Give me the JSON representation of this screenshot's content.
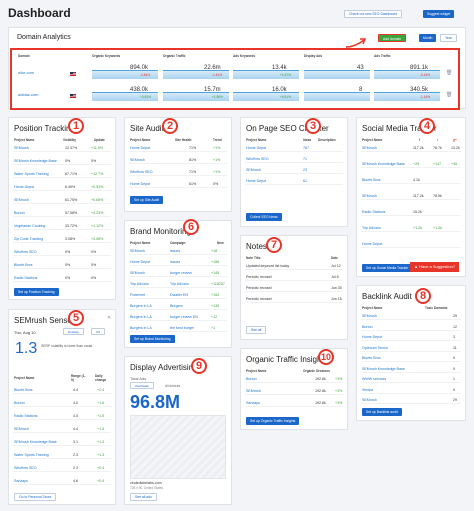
{
  "header": {
    "title": "Dashboard",
    "check_link": "Check out new SEO Dashboard",
    "suggest_btn": "Suggest widget"
  },
  "domain_analytics": {
    "title": "Domain Analytics",
    "add_btn": "Add domain",
    "month": "Month",
    "year": "Year",
    "columns": [
      "Domain",
      "Organic Keywords",
      "Organic Traffic",
      "Ads Keywords",
      "Display Ads",
      "Ads Traffic"
    ],
    "rows": [
      {
        "domain": "nike.com",
        "ok": "894.0k",
        "ok_d": "-3.84%",
        "ot": "22.6m",
        "ot_d": "-1.61%",
        "ak": "13.4k",
        "ak_d": "+1.57%",
        "da": "43",
        "at": "891.1k",
        "at_d": "-5.16%"
      },
      {
        "domain": "adidas.com",
        "ok": "438.0k",
        "ok_d": "+3.93%",
        "ot": "15.7m",
        "ot_d": "+1.56%",
        "ak": "16.0k",
        "ak_d": "+6.91%",
        "da": "8",
        "at": "340.5k",
        "at_d": "-1.16%"
      }
    ]
  },
  "position_tracking": {
    "title": "Position Tracking",
    "cols": [
      "Project Name",
      "Visibility",
      "Update"
    ],
    "rows": [
      {
        "n": "SEMrush",
        "v": "12.37%",
        "d": "+11.5%"
      },
      {
        "n": "SEMrush Knowledge Base",
        "v": "0%",
        "d": "0%"
      },
      {
        "n": "Water Sports Training",
        "v": "67.71%",
        "d": "+12.7%"
      },
      {
        "n": "Home Depot",
        "v": "6.49%",
        "d": "+0.53%"
      },
      {
        "n": "SEMrush",
        "v": "61.75%",
        "d": "+0.65%"
      },
      {
        "n": "Burton",
        "v": "57.58%",
        "d": "+4.23%"
      },
      {
        "n": "Vegetarian Cooking",
        "v": "33.72%",
        "d": "+1.12%"
      },
      {
        "n": "Zip Code Tracking",
        "v": "3.08%",
        "d": "+3.08%"
      },
      {
        "n": "WikiHow SEO",
        "v": "0%",
        "d": "0%"
      },
      {
        "n": "Bluebt Bros",
        "v": "0%",
        "d": "0%"
      },
      {
        "n": "Radio Stations",
        "v": "0%",
        "d": "0%"
      }
    ],
    "btn": "Set up Position Tracking"
  },
  "site_audit": {
    "title": "Site Audit",
    "cols": [
      "Project Name",
      "Site Health",
      "Trend"
    ],
    "rows": [
      {
        "n": "Home Depot",
        "v": "71%",
        "d": "+1%"
      },
      {
        "n": "SEMrush",
        "v": "81%",
        "d": "+1%"
      },
      {
        "n": "WikiHow SEO",
        "v": "71%",
        "d": "+1%"
      },
      {
        "n": "Home Depot",
        "v": "61%",
        "d": "0%"
      }
    ],
    "btn": "Set up Site Audit"
  },
  "onpage": {
    "title": "On Page SEO Checker",
    "cols": [
      "Project Name",
      "Ideas",
      "Description"
    ],
    "rows": [
      {
        "n": "Home Depot",
        "v": "767"
      },
      {
        "n": "WikiHow SEO",
        "v": "71"
      },
      {
        "n": "SEMrush",
        "v": "23"
      },
      {
        "n": "Home Depot",
        "v": "61"
      }
    ],
    "btn": "Collect SEO Ideas"
  },
  "social": {
    "title": "Social Media Tracker",
    "cols": [
      "Project Name",
      "f",
      "t",
      "g+"
    ],
    "rows": [
      {
        "n": "SEMrush",
        "a": "117.2k",
        "b": "78.7k",
        "c": "13.2k"
      },
      {
        "n": "SEMrush Knowledge Base",
        "a": "+29",
        "b": "+147",
        "c": "+45"
      },
      {
        "n": "Bluebt Bros",
        "a": "4.1k",
        "b": "",
        "c": ""
      },
      {
        "n": "SEMrush",
        "a": "117.2k",
        "b": "78.5k",
        "c": ""
      },
      {
        "n": "Radio Stations",
        "a": "15.2k",
        "b": "",
        "c": ""
      },
      {
        "n": "Trip Advisor",
        "a": "+1.2k",
        "b": "+1.2k",
        "c": ""
      },
      {
        "n": "Home Depot",
        "a": "",
        "b": "",
        "c": ""
      }
    ],
    "btn": "Set up Social Media Tracker"
  },
  "brand": {
    "title": "Brand Monitoring",
    "cols": [
      "Project Name",
      "Campaign",
      "New"
    ],
    "rows": [
      {
        "n": "SEMrush",
        "c": "issues",
        "v": "+18"
      },
      {
        "n": "Home Depot",
        "c": "issues",
        "v": "+156"
      },
      {
        "n": "SEMrush",
        "c": "burger review",
        "v": "+145"
      },
      {
        "n": "Trip Advisor",
        "c": "Trip Advisor",
        "v": "+118257"
      },
      {
        "n": "Powernet",
        "c": "Dwaller EN",
        "v": "+152"
      },
      {
        "n": "Burgers in LA",
        "c": "Burgers",
        "v": "+135"
      },
      {
        "n": "Burgers in LA",
        "c": "burger review EN",
        "v": "+12"
      },
      {
        "n": "Burgers in LA",
        "c": "the best burger",
        "v": "+1"
      }
    ],
    "btn": "Set up Brand Monitoring"
  },
  "notes": {
    "title": "Notes",
    "cols": [
      "Note Title",
      "Date"
    ],
    "rows": [
      {
        "n": "Updated keyword list today",
        "d": "Jul 12"
      },
      {
        "n": "Periodic recrawl",
        "d": "Jul 8"
      },
      {
        "n": "Periodic recrawl",
        "d": "Jun 30"
      },
      {
        "n": "Periodic recrawl",
        "d": "Jun 15"
      }
    ],
    "btn": "See all"
  },
  "backlink": {
    "title": "Backlink Audit",
    "cols": [
      "Project Name",
      "Toxic Domains"
    ],
    "rows": [
      {
        "n": "SEMrush",
        "v": "29"
      },
      {
        "n": "Burton",
        "v": "12"
      },
      {
        "n": "Home Depot",
        "v": "3"
      },
      {
        "n": "Optimum Tennis",
        "v": "11"
      },
      {
        "n": "Bluebt Bros",
        "v": "0"
      },
      {
        "n": "SEMrush Knowledge Base",
        "v": "0"
      },
      {
        "n": "WWW services",
        "v": "1"
      },
      {
        "n": "Sensia",
        "v": "0"
      },
      {
        "n": "SEMrush",
        "v": "29"
      }
    ],
    "btn": "Set up Backlink audit",
    "suggestion": "Have a Suggestion?"
  },
  "sensor": {
    "title": "SEMrush Sensor",
    "date": "Thu, Aug 10",
    "device": "Desktop",
    "country": "US",
    "score": "1.3",
    "desc": "SERP volatility is lower than usual",
    "cols": [
      "Project Name",
      "Range (1-5)",
      "Daily change"
    ],
    "rows": [
      {
        "n": "Bluebt Bros",
        "v": "4.4",
        "d": "+2.4"
      },
      {
        "n": "Burton",
        "v": "4.0",
        "d": "+1.6"
      },
      {
        "n": "Radio Stations",
        "v": "4.0",
        "d": "+1.5"
      },
      {
        "n": "SEMrush",
        "v": "4.4",
        "d": "+1.5"
      },
      {
        "n": "SEMrush Knowledge Base",
        "v": "3.1",
        "d": "+1.3"
      },
      {
        "n": "Water Sports Training",
        "v": "2.3",
        "d": "+1.3"
      },
      {
        "n": "WikiHow SEO",
        "v": "2.3",
        "d": "+0.4"
      },
      {
        "n": "Sarizays",
        "v": "4.6",
        "d": "+0.4"
      }
    ],
    "btn": "Go to Personal Score"
  },
  "display_ads": {
    "title": "Display Advertising",
    "total_label": "Total Ads",
    "filter": "Worldwide",
    "devices": "All devices",
    "value": "96.8M",
    "ad_domain": "cludedwirelabs.com",
    "ad_size": "728 x 90, United States",
    "btn": "See all ads"
  },
  "organic": {
    "title": "Organic Traffic Insights",
    "cols": [
      "Project Name",
      "Organic Sessions"
    ],
    "rows": [
      {
        "n": "Burton",
        "v": "192.8k",
        "d": "+3%"
      },
      {
        "n": "SEMrush",
        "v": "192.8k",
        "d": "+3%"
      },
      {
        "n": "Sarizays",
        "v": "192.8k",
        "d": "+3%"
      }
    ],
    "btn": "Set up Organic Traffic Insights"
  },
  "markers": [
    "1",
    "2",
    "3",
    "4",
    "5",
    "6",
    "7",
    "8",
    "9",
    "10"
  ]
}
